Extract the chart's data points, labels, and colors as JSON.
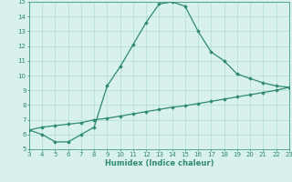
{
  "xlabel": "Humidex (Indice chaleur)",
  "ylabel": "",
  "xlim": [
    3,
    23
  ],
  "ylim": [
    5,
    15
  ],
  "xticks": [
    3,
    4,
    5,
    6,
    7,
    8,
    9,
    10,
    11,
    12,
    13,
    14,
    15,
    16,
    17,
    18,
    19,
    20,
    21,
    22,
    23
  ],
  "yticks": [
    5,
    6,
    7,
    8,
    9,
    10,
    11,
    12,
    13,
    14,
    15
  ],
  "curve1_x": [
    3,
    4,
    5,
    6,
    7,
    8,
    9,
    10,
    11,
    12,
    13,
    14,
    15,
    16,
    17,
    18,
    19,
    20,
    21,
    22,
    23
  ],
  "curve1_y": [
    6.3,
    6.0,
    5.5,
    5.5,
    6.0,
    6.5,
    9.3,
    10.6,
    12.1,
    13.6,
    14.85,
    15.0,
    14.7,
    13.0,
    11.6,
    11.0,
    10.1,
    9.8,
    9.5,
    9.3,
    9.2
  ],
  "curve2_x": [
    3,
    4,
    5,
    6,
    7,
    8,
    9,
    10,
    11,
    12,
    13,
    14,
    15,
    16,
    17,
    18,
    19,
    20,
    21,
    22,
    23
  ],
  "curve2_y": [
    6.3,
    6.5,
    6.6,
    6.7,
    6.8,
    7.0,
    7.1,
    7.25,
    7.4,
    7.55,
    7.7,
    7.85,
    7.95,
    8.1,
    8.25,
    8.4,
    8.55,
    8.7,
    8.85,
    9.0,
    9.2
  ],
  "line_color": "#2e8b6e",
  "bg_color": "#d8f0ee",
  "grid_color": "#b0ddd8",
  "tick_color": "#2e8b6e",
  "label_color": "#2e8b6e",
  "marker": "D",
  "marker_size": 1.8,
  "linewidth": 0.9,
  "tick_labelsize": 5.0,
  "xlabel_fontsize": 6.0
}
